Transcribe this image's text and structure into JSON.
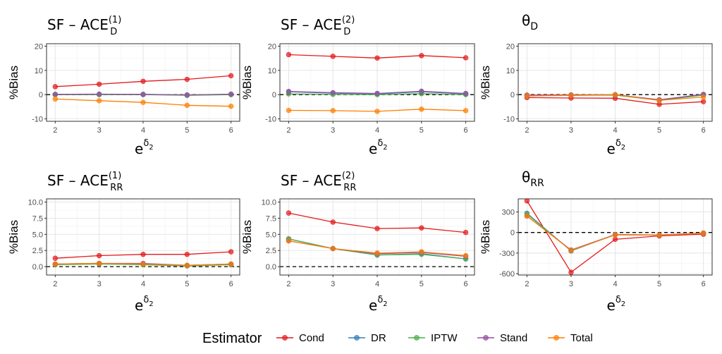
{
  "legend": {
    "title": "Estimator",
    "items": [
      {
        "name": "Cond",
        "color": "#E41A1C"
      },
      {
        "name": "DR",
        "color": "#377EB8"
      },
      {
        "name": "IPTW",
        "color": "#4DAF4A"
      },
      {
        "name": "Stand",
        "color": "#984EA3"
      },
      {
        "name": "Total",
        "color": "#FF7F00"
      }
    ],
    "placement": "bottom"
  },
  "chart_data": [
    {
      "type": "line",
      "title": {
        "base": "SF – ACE",
        "sub": "D",
        "sup": "(1)"
      },
      "ylabel": "%Bias",
      "xlabel": {
        "base": "e",
        "sup": "δ",
        "supsub": "2"
      },
      "x": [
        2,
        3,
        4,
        5,
        6
      ],
      "ylim": [
        -11,
        21
      ],
      "yticks": [
        "-10",
        "0",
        "10",
        "20"
      ],
      "ytick_values": [
        -10,
        0,
        10,
        20
      ],
      "reference_line": 0,
      "grid": true,
      "series": [
        {
          "name": "Cond",
          "values": [
            3.3,
            4.3,
            5.5,
            6.3,
            7.8
          ]
        },
        {
          "name": "DR",
          "values": [
            0.1,
            0.1,
            0.1,
            -0.2,
            0.1
          ]
        },
        {
          "name": "IPTW",
          "values": [
            0.0,
            0.0,
            0.0,
            -0.3,
            0.0
          ]
        },
        {
          "name": "Stand",
          "values": [
            0.1,
            0.2,
            0.1,
            -0.1,
            0.2
          ]
        },
        {
          "name": "Total",
          "values": [
            -1.8,
            -2.5,
            -3.2,
            -4.4,
            -4.8
          ]
        }
      ]
    },
    {
      "type": "line",
      "title": {
        "base": "SF – ACE",
        "sub": "D",
        "sup": "(2)"
      },
      "ylabel": "%Bias",
      "xlabel": {
        "base": "e",
        "sup": "δ",
        "supsub": "2"
      },
      "x": [
        2,
        3,
        4,
        5,
        6
      ],
      "ylim": [
        -11,
        21
      ],
      "yticks": [
        "-10",
        "0",
        "10",
        "20"
      ],
      "ytick_values": [
        -10,
        0,
        10,
        20
      ],
      "reference_line": 0,
      "grid": true,
      "series": [
        {
          "name": "Cond",
          "values": [
            16.5,
            15.8,
            15.1,
            16.1,
            15.2
          ]
        },
        {
          "name": "DR",
          "values": [
            1.2,
            0.6,
            0.3,
            1.2,
            0.3
          ]
        },
        {
          "name": "IPTW",
          "values": [
            0.3,
            0.1,
            0.0,
            0.4,
            0.0
          ]
        },
        {
          "name": "Stand",
          "values": [
            1.3,
            0.8,
            0.5,
            1.4,
            0.5
          ]
        },
        {
          "name": "Total",
          "values": [
            -6.5,
            -6.6,
            -6.9,
            -6.0,
            -6.6
          ]
        }
      ]
    },
    {
      "type": "line",
      "title": {
        "base": "θ",
        "sub": "D",
        "sup": ""
      },
      "ylabel": "%Bias",
      "xlabel": {
        "base": "e",
        "sup": "δ",
        "supsub": "2"
      },
      "x": [
        2,
        3,
        4,
        5,
        6
      ],
      "ylim": [
        -11,
        21
      ],
      "yticks": [
        "-10",
        "0",
        "10",
        "20"
      ],
      "ytick_values": [
        -10,
        0,
        10,
        20
      ],
      "reference_line": 0,
      "grid": true,
      "series": [
        {
          "name": "Cond",
          "values": [
            -1.2,
            -1.4,
            -1.5,
            -4.0,
            -2.9
          ]
        },
        {
          "name": "DR",
          "values": [
            -0.3,
            -0.2,
            -0.1,
            -2.2,
            0.0
          ]
        },
        {
          "name": "IPTW",
          "values": [
            -0.5,
            -0.3,
            -0.2,
            -2.4,
            -0.2
          ]
        },
        {
          "name": "Stand",
          "values": [
            -0.2,
            -0.1,
            0.0,
            -2.1,
            0.1
          ]
        },
        {
          "name": "Total",
          "values": [
            -0.5,
            -0.3,
            0.0,
            -2.4,
            -1.0
          ]
        }
      ]
    },
    {
      "type": "line",
      "title": {
        "base": "SF – ACE",
        "sub": "RR",
        "sup": "(1)"
      },
      "ylabel": "%Bias",
      "xlabel": {
        "base": "e",
        "sup": "δ",
        "supsub": "2"
      },
      "x": [
        2,
        3,
        4,
        5,
        6
      ],
      "ylim": [
        -1.3,
        10.5
      ],
      "yticks": [
        "0.0",
        "2.5",
        "5.0",
        "7.5",
        "10.0"
      ],
      "ytick_values": [
        0,
        2.5,
        5,
        7.5,
        10
      ],
      "reference_line": 0,
      "grid": true,
      "series": [
        {
          "name": "Cond",
          "values": [
            1.3,
            1.7,
            1.9,
            1.9,
            2.3
          ]
        },
        {
          "name": "DR",
          "values": [
            0.4,
            0.5,
            0.4,
            0.2,
            0.4
          ]
        },
        {
          "name": "IPTW",
          "values": [
            0.3,
            0.4,
            0.3,
            0.1,
            0.3
          ]
        },
        {
          "name": "Stand",
          "values": [
            0.4,
            0.5,
            0.5,
            0.2,
            0.4
          ]
        },
        {
          "name": "Total",
          "values": [
            0.4,
            0.5,
            0.4,
            0.2,
            0.4
          ]
        }
      ]
    },
    {
      "type": "line",
      "title": {
        "base": "SF – ACE",
        "sub": "RR",
        "sup": "(2)"
      },
      "ylabel": "%Bias",
      "xlabel": {
        "base": "e",
        "sup": "δ",
        "supsub": "2"
      },
      "x": [
        2,
        3,
        4,
        5,
        6
      ],
      "ylim": [
        -1.3,
        10.5
      ],
      "yticks": [
        "0.0",
        "2.5",
        "5.0",
        "7.5",
        "10.0"
      ],
      "ytick_values": [
        0,
        2.5,
        5,
        7.5,
        10
      ],
      "reference_line": 0,
      "grid": true,
      "series": [
        {
          "name": "Cond",
          "values": [
            8.3,
            6.9,
            5.9,
            6.0,
            5.3
          ]
        },
        {
          "name": "DR",
          "values": [
            4.3,
            2.8,
            1.8,
            2.0,
            1.2
          ]
        },
        {
          "name": "IPTW",
          "values": [
            4.3,
            2.8,
            1.8,
            1.9,
            1.2
          ]
        },
        {
          "name": "Stand",
          "values": [
            4.0,
            2.8,
            2.0,
            2.2,
            1.6
          ]
        },
        {
          "name": "Total",
          "values": [
            4.0,
            2.8,
            2.1,
            2.3,
            1.7
          ]
        }
      ]
    },
    {
      "type": "line",
      "title": {
        "base": "θ",
        "sub": "RR",
        "sup": ""
      },
      "ylabel": "%Bias",
      "xlabel": {
        "base": "e",
        "sup": "δ",
        "supsub": "2"
      },
      "x": [
        2,
        3,
        4,
        5,
        6
      ],
      "ylim": [
        -620,
        490
      ],
      "yticks": [
        "-600",
        "-300",
        "0",
        "300"
      ],
      "ytick_values": [
        -600,
        -300,
        0,
        300
      ],
      "reference_line": 0,
      "grid": true,
      "series": [
        {
          "name": "Cond",
          "values": [
            460,
            -580,
            -100,
            -50,
            -25
          ]
        },
        {
          "name": "DR",
          "values": [
            280,
            -270,
            -30,
            -40,
            -10
          ]
        },
        {
          "name": "IPTW",
          "values": [
            270,
            -265,
            -30,
            -38,
            -10
          ]
        },
        {
          "name": "Stand",
          "values": [
            240,
            -255,
            -30,
            -35,
            -8
          ]
        },
        {
          "name": "Total",
          "values": [
            240,
            -260,
            -35,
            -38,
            -10
          ]
        }
      ]
    }
  ]
}
